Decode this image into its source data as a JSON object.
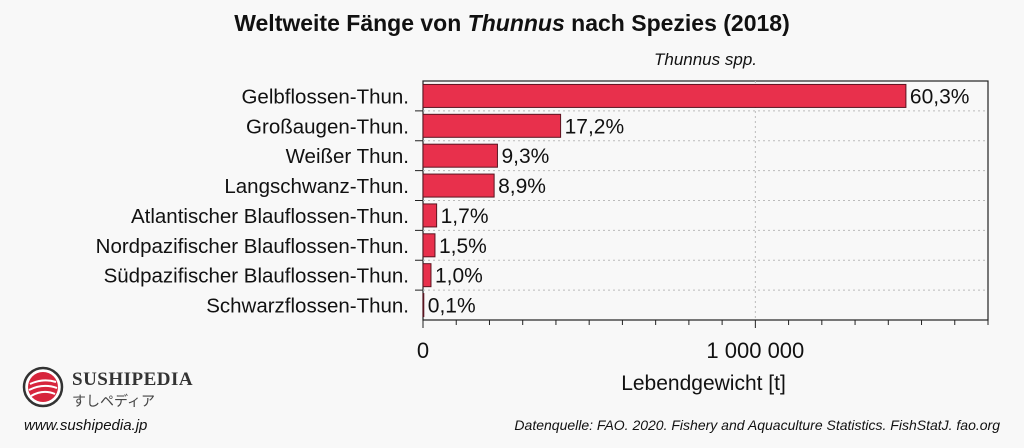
{
  "chart_data": {
    "type": "bar",
    "orientation": "horizontal",
    "title_prefix": "Weltweite Fänge von ",
    "title_italic": "Thunnus",
    "title_suffix": " nach Spezies (2018)",
    "subtitle": "Thunnus spp.",
    "xlabel": "Lebendgewicht [t]",
    "ylabel": "",
    "xlim": [
      0,
      1700000
    ],
    "xticks": [
      0,
      1000000
    ],
    "xtick_labels": [
      "0",
      "1 000 000"
    ],
    "minor_tick_step": 100000,
    "categories": [
      "Gelbflossen-Thun.",
      "Großaugen-Thun.",
      "Weißer Thun.",
      "Langschwanz-Thun.",
      "Atlantischer Blauflossen-Thun.",
      "Nordpazifischer Blauflossen-Thun.",
      "Südpazifischer Blauflossen-Thun.",
      "Schwarzflossen-Thun."
    ],
    "values": [
      1453000,
      414000,
      224000,
      214000,
      41000,
      36000,
      24000,
      2400
    ],
    "data_labels": [
      "60,3%",
      "17,2%",
      "9,3%",
      "8,9%",
      "1,7%",
      "1,5%",
      "1,0%",
      "0,1%"
    ],
    "bar_color": "#e8304c",
    "grid": "vertical dashed at 1 000 000"
  },
  "footer": {
    "brand": "Sushipedia",
    "brand_jp": "すしペディア",
    "url": "www.sushipedia.jp",
    "source": "Datenquelle: FAO. 2020. Fishery and Aquaculture Statistics. FishStatJ. fao.org"
  }
}
